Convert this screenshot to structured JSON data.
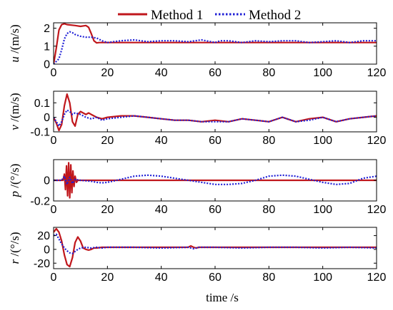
{
  "legend": {
    "entries": [
      {
        "label": "Method 1",
        "color": "#c0171c",
        "style": "solid"
      },
      {
        "label": "Method 2",
        "color": "#1f1fd6",
        "style": "dotted"
      }
    ],
    "placement": "top"
  },
  "xlabel": "time /s",
  "chart_data": [
    {
      "type": "line",
      "ylabel_var": "u",
      "ylabel_unit": " /(m/s)",
      "xlim": [
        0,
        120
      ],
      "ylim": [
        0,
        2.3
      ],
      "xticks": [
        0,
        20,
        40,
        60,
        80,
        100,
        120
      ],
      "xtick_labels": [
        "0",
        "20",
        "40",
        "60",
        "80",
        "100",
        "120"
      ],
      "yticks": [
        0,
        1,
        2
      ],
      "ytick_labels": [
        "0",
        "1",
        "2"
      ],
      "series": [
        {
          "name": "Method 1",
          "x": [
            0,
            1,
            2,
            3,
            4,
            5,
            8,
            10,
            12,
            13,
            14,
            15,
            16,
            17,
            20,
            30,
            40,
            50,
            60,
            70,
            80,
            90,
            100,
            110,
            120
          ],
          "y": [
            0,
            0.9,
            1.9,
            2.2,
            2.25,
            2.2,
            2.15,
            2.1,
            2.15,
            2.05,
            1.7,
            1.3,
            1.18,
            1.2,
            1.2,
            1.2,
            1.2,
            1.2,
            1.2,
            1.2,
            1.2,
            1.2,
            1.2,
            1.2,
            1.2
          ]
        },
        {
          "name": "Method 2",
          "x": [
            0,
            2,
            3,
            4,
            5,
            6,
            7,
            8,
            10,
            12,
            14,
            16,
            18,
            20,
            25,
            30,
            35,
            40,
            45,
            50,
            55,
            60,
            62,
            65,
            70,
            75,
            80,
            85,
            90,
            95,
            100,
            105,
            110,
            115,
            120
          ],
          "y": [
            0,
            0.3,
            0.8,
            1.4,
            1.7,
            1.8,
            1.75,
            1.65,
            1.55,
            1.5,
            1.5,
            1.45,
            1.3,
            1.2,
            1.3,
            1.35,
            1.25,
            1.3,
            1.3,
            1.25,
            1.35,
            1.2,
            1.3,
            1.3,
            1.2,
            1.3,
            1.25,
            1.3,
            1.3,
            1.2,
            1.25,
            1.3,
            1.2,
            1.3,
            1.3
          ]
        }
      ]
    },
    {
      "type": "line",
      "ylabel_var": "v",
      "ylabel_unit": " /(m/s)",
      "xlim": [
        0,
        120
      ],
      "ylim": [
        -0.1,
        0.18
      ],
      "xticks": [
        0,
        20,
        40,
        60,
        80,
        100,
        120
      ],
      "xtick_labels": [
        "0",
        "20",
        "40",
        "60",
        "80",
        "100",
        "120"
      ],
      "yticks": [
        -0.1,
        0,
        0.1
      ],
      "ytick_labels": [
        "-0.1",
        "0",
        "0.1"
      ],
      "series": [
        {
          "name": "Method 1",
          "x": [
            0,
            1,
            2,
            3,
            4,
            5,
            6,
            7,
            8,
            9,
            10,
            11,
            12,
            13,
            14,
            16,
            18,
            20,
            25,
            30,
            35,
            40,
            45,
            50,
            55,
            60,
            65,
            70,
            75,
            80,
            85,
            90,
            95,
            100,
            105,
            110,
            115,
            120
          ],
          "y": [
            0,
            -0.04,
            -0.09,
            -0.05,
            0.08,
            0.16,
            0.1,
            -0.03,
            -0.06,
            0.02,
            0.04,
            0.03,
            0.02,
            0.03,
            0.02,
            0.0,
            -0.01,
            0.0,
            0.01,
            0.01,
            0.0,
            -0.01,
            -0.02,
            -0.02,
            -0.03,
            -0.02,
            -0.03,
            -0.01,
            -0.02,
            -0.03,
            0.0,
            -0.03,
            -0.01,
            0.0,
            -0.03,
            -0.01,
            0.0,
            0.01
          ]
        },
        {
          "name": "Method 2",
          "x": [
            0,
            1,
            2,
            3,
            4,
            5,
            6,
            7,
            8,
            10,
            12,
            14,
            16,
            18,
            20,
            25,
            30,
            35,
            40,
            45,
            50,
            55,
            60,
            65,
            70,
            75,
            80,
            85,
            90,
            95,
            100,
            105,
            110,
            115,
            120
          ],
          "y": [
            0,
            -0.03,
            -0.06,
            -0.03,
            0.02,
            0.05,
            0.04,
            0.02,
            0.03,
            0.02,
            0.0,
            -0.01,
            0.0,
            -0.02,
            -0.01,
            0.0,
            0.01,
            0.0,
            -0.01,
            -0.02,
            -0.02,
            -0.03,
            -0.03,
            -0.03,
            -0.01,
            -0.02,
            -0.03,
            0.0,
            -0.03,
            -0.02,
            0.0,
            -0.03,
            -0.01,
            0.0,
            0.01
          ]
        }
      ]
    },
    {
      "type": "line",
      "ylabel_var": "p",
      "ylabel_unit": " /(°/s)",
      "xlim": [
        0,
        120
      ],
      "ylim": [
        -0.2,
        0.2
      ],
      "xticks": [
        0,
        20,
        40,
        60,
        80,
        100,
        120
      ],
      "xtick_labels": [
        "0",
        "20",
        "40",
        "60",
        "80",
        "100",
        "120"
      ],
      "yticks": [
        -0.2,
        0
      ],
      "ytick_labels": [
        "-0.2",
        "0"
      ],
      "series": [
        {
          "name": "Method 1",
          "x": [
            0,
            3.5,
            4.0,
            4.4,
            4.8,
            5.2,
            5.6,
            6.0,
            6.4,
            6.8,
            7.2,
            7.6,
            8.0,
            8.5,
            9,
            10,
            20,
            40,
            60,
            80,
            100,
            120
          ],
          "y": [
            0,
            0,
            0.06,
            -0.09,
            0.14,
            -0.15,
            0.17,
            -0.17,
            0.15,
            -0.12,
            0.09,
            -0.06,
            0.04,
            -0.02,
            0,
            0,
            0,
            0,
            0,
            0,
            0,
            0
          ]
        },
        {
          "name": "Method 2",
          "x": [
            0,
            3,
            4,
            5,
            6,
            7,
            8,
            10,
            12,
            14,
            16,
            18,
            20,
            25,
            30,
            35,
            40,
            45,
            50,
            55,
            60,
            65,
            70,
            75,
            80,
            85,
            90,
            95,
            100,
            105,
            110,
            115,
            120
          ],
          "y": [
            0,
            0,
            0.04,
            -0.04,
            0.03,
            -0.03,
            0.01,
            0,
            -0.005,
            -0.01,
            -0.02,
            -0.025,
            -0.02,
            0.01,
            0.04,
            0.05,
            0.04,
            0.02,
            0,
            -0.02,
            -0.04,
            -0.04,
            -0.03,
            0,
            0.04,
            0.05,
            0.04,
            0.01,
            -0.02,
            -0.04,
            -0.03,
            0.02,
            0.04
          ]
        }
      ]
    },
    {
      "type": "line",
      "ylabel_var": "r",
      "ylabel_unit": " /(°/s)",
      "xlim": [
        0,
        120
      ],
      "ylim": [
        -28,
        32
      ],
      "xticks": [
        0,
        20,
        40,
        60,
        80,
        100,
        120
      ],
      "xtick_labels": [
        "0",
        "20",
        "40",
        "60",
        "80",
        "100",
        "120"
      ],
      "yticks": [
        -20,
        0,
        20
      ],
      "ytick_labels": [
        "-20",
        "0",
        "20"
      ],
      "series": [
        {
          "name": "Method 1",
          "x": [
            0,
            1,
            2,
            3,
            4,
            5,
            6,
            7,
            8,
            9,
            10,
            11,
            12,
            13,
            14,
            15,
            16,
            18,
            20,
            30,
            40,
            50,
            51,
            52,
            53,
            54,
            60,
            70,
            80,
            90,
            100,
            110,
            120
          ],
          "y": [
            25,
            30,
            25,
            12,
            -8,
            -22,
            -25,
            -12,
            10,
            18,
            12,
            2,
            0,
            -1,
            0,
            2,
            2,
            3,
            3,
            3,
            3,
            3,
            5,
            3,
            2,
            3,
            3,
            3,
            3,
            3,
            3,
            3,
            3
          ]
        },
        {
          "name": "Method 2",
          "x": [
            0,
            1,
            2,
            3,
            4,
            5,
            6,
            7,
            8,
            9,
            10,
            12,
            14,
            16,
            18,
            20,
            30,
            40,
            50,
            52,
            54,
            60,
            70,
            80,
            90,
            100,
            110,
            120
          ],
          "y": [
            20,
            22,
            15,
            8,
            2,
            -2,
            -5,
            -6,
            -3,
            0,
            2,
            3,
            2,
            3,
            2,
            3,
            3,
            2,
            3,
            1,
            3,
            3,
            2,
            3,
            3,
            2,
            3,
            2
          ]
        }
      ]
    }
  ]
}
